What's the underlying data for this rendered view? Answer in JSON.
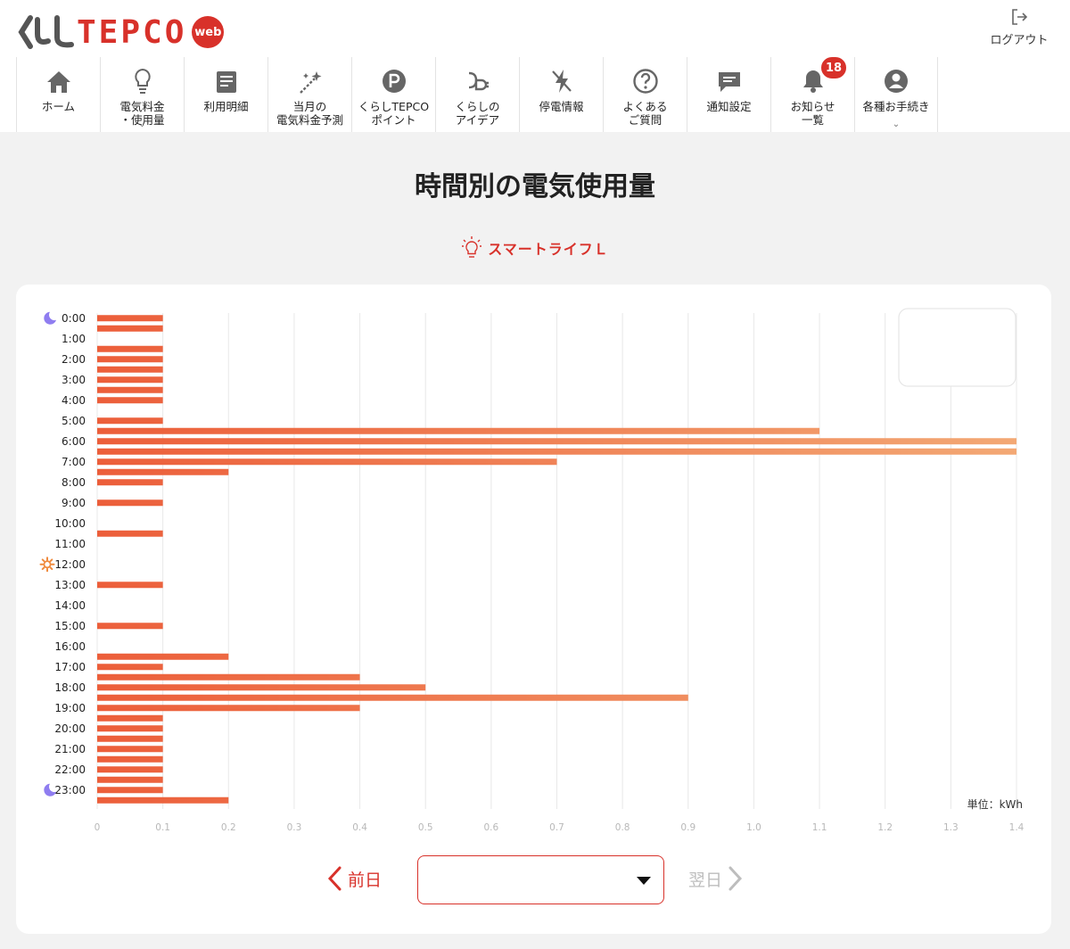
{
  "header": {
    "logo": {
      "text_main": "TEPCO",
      "text_prefix": "くらし",
      "badge": "web"
    },
    "logout_label": "ログアウト",
    "nav": [
      {
        "id": "home",
        "label": "ホーム",
        "icon": "home-icon"
      },
      {
        "id": "billing",
        "label": "電気料金\n・使用量",
        "icon": "lightbulb-icon",
        "has_caret": true
      },
      {
        "id": "statement",
        "label": "利用明細",
        "icon": "document-icon"
      },
      {
        "id": "forecast",
        "label": "当月の\n電気料金予測",
        "icon": "sparkle-wand-icon"
      },
      {
        "id": "points",
        "label": "くらしTEPCO\nポイント",
        "icon": "points-p-icon"
      },
      {
        "id": "ideas",
        "label": "くらしの\nアイデア",
        "icon": "plug-icon"
      },
      {
        "id": "outage",
        "label": "停電情報",
        "icon": "lightning-off-icon"
      },
      {
        "id": "faq",
        "label": "よくある\nご質問",
        "icon": "question-icon"
      },
      {
        "id": "notify",
        "label": "通知設定",
        "icon": "chat-icon"
      },
      {
        "id": "news",
        "label": "お知らせ\n一覧",
        "icon": "bell-icon",
        "badge": "18"
      },
      {
        "id": "procedures",
        "label": "各種お手続き",
        "icon": "user-icon",
        "has_caret": true
      }
    ]
  },
  "page": {
    "title": "時間別の電気使用量",
    "plan_name": "スマートライフＬ",
    "unit_label": "単位：kWh",
    "prev_label": "前日",
    "next_label": "翌日",
    "date_select_value": ""
  },
  "colors": {
    "accent": "#d8312a",
    "bar_start": "#ec5e3a",
    "bar_end": "#f3a874"
  },
  "chart_data": {
    "type": "bar",
    "orientation": "horizontal",
    "categories": [
      "0:00",
      "0:30",
      "1:00",
      "1:30",
      "2:00",
      "2:30",
      "3:00",
      "3:30",
      "4:00",
      "4:30",
      "5:00",
      "5:30",
      "6:00",
      "6:30",
      "7:00",
      "7:30",
      "8:00",
      "8:30",
      "9:00",
      "9:30",
      "10:00",
      "10:30",
      "11:00",
      "11:30",
      "12:00",
      "12:30",
      "13:00",
      "13:30",
      "14:00",
      "14:30",
      "15:00",
      "15:30",
      "16:00",
      "16:30",
      "17:00",
      "17:30",
      "18:00",
      "18:30",
      "19:00",
      "19:30",
      "20:00",
      "20:30",
      "21:00",
      "21:30",
      "22:00",
      "22:30",
      "23:00",
      "23:30"
    ],
    "y_tick_labels": [
      "0:00",
      "1:00",
      "2:00",
      "3:00",
      "4:00",
      "5:00",
      "6:00",
      "7:00",
      "8:00",
      "9:00",
      "10:00",
      "11:00",
      "12:00",
      "13:00",
      "14:00",
      "15:00",
      "16:00",
      "17:00",
      "18:00",
      "19:00",
      "20:00",
      "21:00",
      "22:00",
      "23:00"
    ],
    "values": [
      0.1,
      0.1,
      0,
      0.1,
      0.1,
      0.1,
      0.1,
      0.1,
      0.1,
      0,
      0.1,
      1.1,
      1.4,
      1.4,
      0.7,
      0.2,
      0.1,
      0,
      0.1,
      0,
      0,
      0.1,
      0,
      0,
      0,
      0,
      0.1,
      0,
      0,
      0,
      0.1,
      0,
      0,
      0.2,
      0.1,
      0.4,
      0.5,
      0.9,
      0.4,
      0.1,
      0.1,
      0.1,
      0.1,
      0.1,
      0.1,
      0.1,
      0.1,
      0.2
    ],
    "x_ticks": [
      "0",
      "0.1",
      "0.2",
      "0.3",
      "0.4",
      "0.5",
      "0.6",
      "0.7",
      "0.8",
      "0.9",
      "1.0",
      "1.1",
      "1.2",
      "1.3",
      "1.4"
    ],
    "xlim": [
      0,
      1.4
    ],
    "grid": true,
    "night_icon_hours": [
      "0:00",
      "23:00"
    ],
    "day_icon_hours": [
      "12:00"
    ]
  }
}
